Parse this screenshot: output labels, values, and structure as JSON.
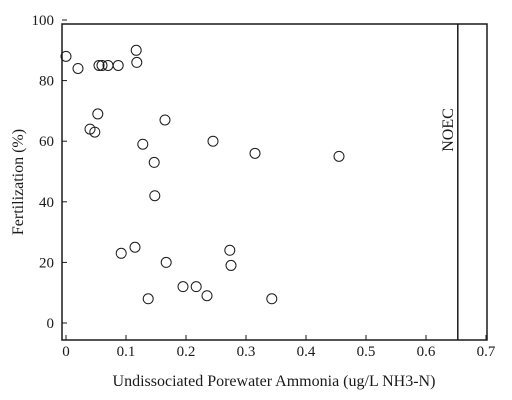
{
  "chart_data": {
    "type": "scatter",
    "title": "",
    "xlabel": "Undissociated Porewater Ammonia (ug/L NH3-N)",
    "ylabel": "Fertilization (%)",
    "xlim": [
      0,
      0.7
    ],
    "ylim": [
      0,
      100
    ],
    "x_ticks": [
      0,
      0.1,
      0.2,
      0.3,
      0.4,
      0.5,
      0.6,
      0.7
    ],
    "x_tick_labels": [
      "0",
      "0.1",
      "0.2",
      "0.3",
      "0.4",
      "0.5",
      "0.6",
      "0.7"
    ],
    "y_ticks": [
      0,
      20,
      40,
      60,
      80,
      100
    ],
    "y_tick_labels": [
      "0",
      "20",
      "40",
      "60",
      "80",
      "100"
    ],
    "grid": false,
    "marker": "open-circle",
    "series": [
      {
        "points": [
          {
            "x": 0.0,
            "y": 88
          },
          {
            "x": 0.02,
            "y": 84
          },
          {
            "x": 0.04,
            "y": 64
          },
          {
            "x": 0.048,
            "y": 63
          },
          {
            "x": 0.053,
            "y": 69
          },
          {
            "x": 0.055,
            "y": 85
          },
          {
            "x": 0.06,
            "y": 85
          },
          {
            "x": 0.07,
            "y": 85
          },
          {
            "x": 0.087,
            "y": 85
          },
          {
            "x": 0.092,
            "y": 23
          },
          {
            "x": 0.115,
            "y": 25
          },
          {
            "x": 0.117,
            "y": 90
          },
          {
            "x": 0.118,
            "y": 86
          },
          {
            "x": 0.128,
            "y": 59
          },
          {
            "x": 0.137,
            "y": 8
          },
          {
            "x": 0.147,
            "y": 53
          },
          {
            "x": 0.148,
            "y": 42
          },
          {
            "x": 0.165,
            "y": 67
          },
          {
            "x": 0.167,
            "y": 20
          },
          {
            "x": 0.195,
            "y": 12
          },
          {
            "x": 0.217,
            "y": 12
          },
          {
            "x": 0.235,
            "y": 9
          },
          {
            "x": 0.245,
            "y": 60
          },
          {
            "x": 0.273,
            "y": 24
          },
          {
            "x": 0.275,
            "y": 19
          },
          {
            "x": 0.315,
            "y": 56
          },
          {
            "x": 0.343,
            "y": 8
          },
          {
            "x": 0.455,
            "y": 55
          }
        ]
      }
    ],
    "reference_lines": [
      {
        "orientation": "vertical",
        "x": 0.653,
        "label": "NOEC"
      }
    ]
  }
}
